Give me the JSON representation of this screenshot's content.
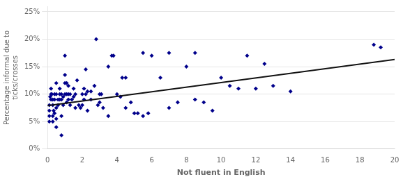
{
  "chart_data": {
    "type": "scatter",
    "xlabel": "Not fluent in English",
    "ylabel": "Percentage informal due to\nticks/crosses",
    "series": [
      {
        "type": "scatter",
        "color": "#00008B",
        "marker": "diamond",
        "x": [
          0.1,
          0.1,
          0.1,
          0.1,
          0.15,
          0.2,
          0.2,
          0.2,
          0.25,
          0.3,
          0.3,
          0.3,
          0.3,
          0.35,
          0.4,
          0.4,
          0.4,
          0.5,
          0.5,
          0.5,
          0.5,
          0.5,
          0.6,
          0.6,
          0.7,
          0.7,
          0.7,
          0.8,
          0.8,
          0.8,
          0.8,
          0.9,
          0.9,
          1.0,
          1.0,
          1.0,
          1.0,
          1.1,
          1.1,
          1.1,
          1.2,
          1.2,
          1.2,
          1.3,
          1.3,
          1.4,
          1.5,
          1.5,
          1.6,
          1.6,
          1.7,
          1.8,
          1.9,
          2.0,
          2.0,
          2.1,
          2.1,
          2.2,
          2.2,
          2.3,
          2.3,
          2.5,
          2.5,
          2.7,
          2.8,
          2.9,
          3.0,
          3.0,
          3.1,
          3.2,
          3.5,
          3.5,
          3.7,
          3.8,
          4.0,
          4.2,
          4.3,
          4.5,
          4.5,
          4.8,
          5.0,
          5.2,
          5.5,
          5.5,
          5.8,
          6.0,
          6.5,
          7.0,
          7.0,
          7.5,
          8.0,
          8.5,
          8.5,
          9.0,
          9.5,
          10.0,
          10.5,
          11.0,
          11.5,
          12.0,
          12.5,
          13.0,
          14.0,
          18.8,
          19.2
        ],
        "values": [
          0.05,
          0.06,
          0.07,
          0.08,
          0.095,
          0.1,
          0.11,
          0.09,
          0.1,
          0.05,
          0.06,
          0.08,
          0.09,
          0.07,
          0.065,
          0.09,
          0.1,
          0.04,
          0.055,
          0.075,
          0.1,
          0.12,
          0.08,
          0.09,
          0.09,
          0.1,
          0.11,
          0.025,
          0.06,
          0.09,
          0.1,
          0.08,
          0.095,
          0.1,
          0.12,
          0.135,
          0.17,
          0.085,
          0.1,
          0.12,
          0.09,
          0.1,
          0.115,
          0.08,
          0.1,
          0.09,
          0.095,
          0.11,
          0.075,
          0.1,
          0.125,
          0.08,
          0.075,
          0.08,
          0.1,
          0.09,
          0.11,
          0.1,
          0.145,
          0.07,
          0.105,
          0.09,
          0.105,
          0.115,
          0.2,
          0.08,
          0.085,
          0.1,
          0.1,
          0.075,
          0.06,
          0.15,
          0.17,
          0.17,
          0.1,
          0.095,
          0.13,
          0.075,
          0.13,
          0.085,
          0.065,
          0.065,
          0.06,
          0.175,
          0.065,
          0.17,
          0.13,
          0.075,
          0.175,
          0.085,
          0.15,
          0.09,
          0.175,
          0.085,
          0.07,
          0.13,
          0.115,
          0.11,
          0.17,
          0.11,
          0.155,
          0.115,
          0.105,
          0.19,
          0.185
        ]
      },
      {
        "type": "line",
        "color": "#111111",
        "line_style": "solid",
        "x": [
          0,
          20
        ],
        "values": [
          0.079,
          0.163
        ]
      }
    ],
    "xlim": [
      0,
      20
    ],
    "ylim": [
      0,
      0.26
    ],
    "xticks": [
      0,
      2,
      4,
      6,
      8,
      10,
      12,
      14,
      16,
      18,
      20
    ],
    "yticks": [
      {
        "value": 0.0,
        "label": "0%"
      },
      {
        "value": 0.05,
        "label": "5%"
      },
      {
        "value": 0.1,
        "label": "10%"
      },
      {
        "value": 0.15,
        "label": "15%"
      },
      {
        "value": 0.2,
        "label": "20%"
      },
      {
        "value": 0.25,
        "label": "25%"
      }
    ],
    "grid": "y"
  }
}
